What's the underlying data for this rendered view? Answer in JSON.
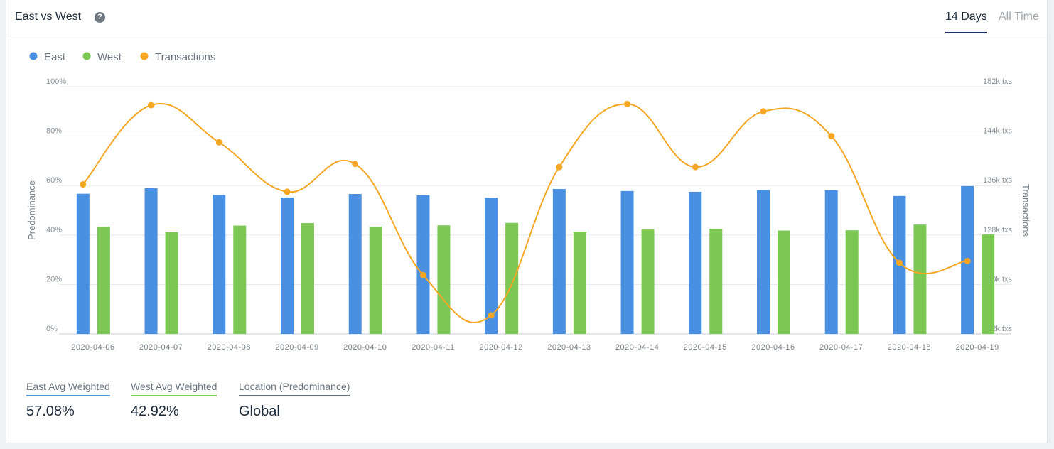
{
  "header": {
    "title": "East vs West",
    "help_icon": "question-circle-icon",
    "tabs": [
      {
        "label": "14 Days",
        "active": true
      },
      {
        "label": "All Time",
        "active": false
      }
    ]
  },
  "colors": {
    "east": "#4a90e2",
    "west": "#7dc855",
    "transactions": "#f5a623"
  },
  "chart_data": {
    "type": "bar",
    "combo": "bar+line",
    "categories": [
      "2020-04-06",
      "2020-04-07",
      "2020-04-08",
      "2020-04-09",
      "2020-04-10",
      "2020-04-11",
      "2020-04-12",
      "2020-04-13",
      "2020-04-14",
      "2020-04-15",
      "2020-04-16",
      "2020-04-17",
      "2020-04-18",
      "2020-04-19"
    ],
    "series": [
      {
        "name": "East",
        "type": "bar",
        "axis": "left",
        "values": [
          56.7,
          58.9,
          56.2,
          55.2,
          56.6,
          56.1,
          55.1,
          58.6,
          57.8,
          57.5,
          58.2,
          58.1,
          55.8,
          59.8
        ]
      },
      {
        "name": "West",
        "type": "bar",
        "axis": "left",
        "values": [
          43.3,
          41.1,
          43.8,
          44.8,
          43.4,
          43.9,
          44.9,
          41.4,
          42.2,
          42.5,
          41.8,
          41.9,
          44.2,
          40.2
        ]
      },
      {
        "name": "Transactions",
        "type": "line",
        "axis": "right",
        "values": [
          136.2,
          149.0,
          143.0,
          135.0,
          139.5,
          121.5,
          115.0,
          139.0,
          149.2,
          139.0,
          148.0,
          144.0,
          123.5,
          123.8
        ]
      }
    ],
    "legend": [
      "East",
      "West",
      "Transactions"
    ],
    "legend_position": "top-left",
    "ylabel_left": "Predominance",
    "ylabel_right": "Transactions",
    "ylim_left": [
      0,
      100
    ],
    "ylim_right": [
      112,
      152
    ],
    "yticks_left": [
      "0%",
      "20%",
      "40%",
      "60%",
      "80%",
      "100%"
    ],
    "yticks_right": [
      "112k txs",
      "120k txs",
      "128k txs",
      "136k txs",
      "144k txs",
      "152k txs"
    ],
    "grid": true
  },
  "stats": [
    {
      "label": "East Avg Weighted",
      "value": "57.08%"
    },
    {
      "label": "West Avg Weighted",
      "value": "42.92%"
    },
    {
      "label": "Location (Predominance)",
      "value": "Global"
    }
  ]
}
